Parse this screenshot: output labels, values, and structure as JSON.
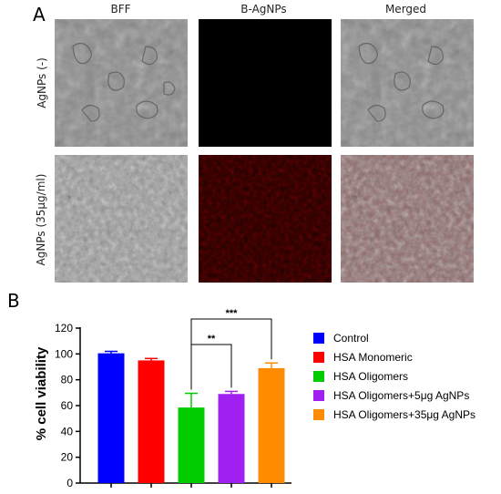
{
  "figure": {
    "panel_a_letter": "A",
    "panel_b_letter": "B",
    "columns": [
      "BFF",
      "B-AgNPs",
      "Merged"
    ],
    "rows": [
      "AgNPs (-)",
      "AgNPs (35μg/ml)"
    ]
  },
  "chart_data": {
    "type": "bar",
    "categories": [
      "Control",
      "HSA Monomeric",
      "HSA Oligomers",
      "HSA Oligomers+5μg AgNPs",
      "HSA Oligomers+35μg AgNPs"
    ],
    "values": [
      100.5,
      95,
      58.5,
      69,
      89
    ],
    "errors": [
      1.5,
      1.5,
      11,
      2,
      4
    ],
    "colors": [
      "#0000ff",
      "#ff0000",
      "#00cc00",
      "#a020f0",
      "#ff8c00"
    ],
    "ylabel": "% cell viability",
    "ylim": [
      0,
      120
    ],
    "yticks": [
      "0",
      "20",
      "40",
      "60",
      "80",
      "100",
      "120"
    ],
    "legend": [
      "Control",
      "HSA Monomeric",
      "HSA Oligomers",
      "HSA Oligomers+5μg AgNPs",
      "HSA Oligomers+35μg AgNPs"
    ],
    "legend_position": "right",
    "annotations": [
      {
        "from": 2,
        "to": 3,
        "label": "**"
      },
      {
        "from": 2,
        "to": 4,
        "label": "***"
      }
    ]
  }
}
